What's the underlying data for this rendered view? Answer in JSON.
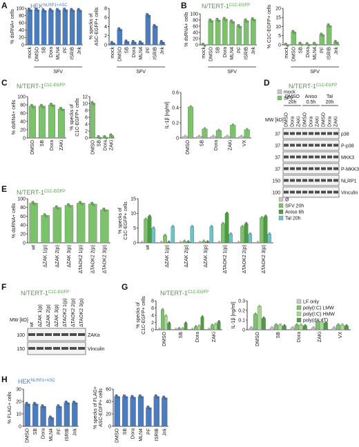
{
  "colors": {
    "blue": "#4a7cc0",
    "green": "#7cc26b",
    "gray": "#c8c8c8",
    "teal": "#6cc4c8",
    "dkgreen": "#4f9a45",
    "lgreen": "#a5d98f"
  },
  "panels": {
    "A": {
      "letter": "A",
      "title": "HEK",
      "title_sup": "NLRP1+ASC"
    },
    "B": {
      "letter": "B",
      "title": "N/TERT-1",
      "title_sup": "C1C-EGFP"
    },
    "C": {
      "letter": "C",
      "title": "N/TERT-1",
      "title_sup": "C1C-EGFP"
    },
    "D": {
      "letter": "D",
      "title": "N/TERT-1",
      "title_sup": "C1C-EGFP"
    },
    "E": {
      "letter": "E",
      "title": "N/TERT-1",
      "title_sup": "C1C-EGFP"
    },
    "F": {
      "letter": "F",
      "title": "N/TERT-1",
      "title_sup": "C1C-EGFP"
    },
    "G": {
      "letter": "G",
      "title": "N/TERT-1",
      "title_sup": "C1C-EGFP"
    },
    "H": {
      "letter": "H",
      "title": "HEK",
      "title_sup": "NLRP1+ASC"
    }
  },
  "chart_data": [
    {
      "id": "A1",
      "type": "bar",
      "color": "#4a7cc0",
      "ylabel": "% dsRNA+ cells",
      "ylim": [
        0,
        100
      ],
      "yticks": [
        0,
        20,
        40,
        60,
        80,
        100
      ],
      "categories": [
        "mock",
        "DMSO",
        "SB",
        "Dora",
        "MLN4",
        "PF",
        "ISRIB",
        "Jnk"
      ],
      "values": [
        96,
        96,
        94,
        95,
        95,
        96,
        95,
        95
      ],
      "group_label": "SFV"
    },
    {
      "id": "A2",
      "type": "bar",
      "color": "#4a7cc0",
      "ylabel": "% specks of ASC-EGFP+ cells",
      "ylim": [
        0,
        8
      ],
      "yticks": [
        0,
        2,
        4,
        6,
        8
      ],
      "categories": [
        "mock",
        "DMSO",
        "SB",
        "Dora",
        "MLN4",
        "PF",
        "ISRIB",
        "Jnk"
      ],
      "values": [
        0.4,
        3.4,
        0.7,
        0.6,
        0.5,
        6.5,
        4.1,
        0.6
      ],
      "group_label": "SFV"
    },
    {
      "id": "B1",
      "type": "bar",
      "color": "#7cc26b",
      "ylabel": "% dsRNA+ cells",
      "ylim": [
        0,
        100
      ],
      "yticks": [
        0,
        20,
        40,
        60,
        80,
        100
      ],
      "categories": [
        "mock",
        "DMSO",
        "SB",
        "Dora",
        "MLN4",
        "PF",
        "ISRIB",
        "Jnk"
      ],
      "values": [
        0,
        78,
        80,
        83,
        75,
        60,
        78,
        82
      ],
      "group_label": "SFV"
    },
    {
      "id": "B2",
      "type": "bar",
      "color": "#7cc26b",
      "ylabel": "% C1C-EGFP+ cells",
      "ylim": [
        0,
        20
      ],
      "yticks": [
        0,
        5,
        10,
        15,
        20
      ],
      "categories": [
        "mock",
        "DMSO",
        "SB",
        "Dora",
        "MLN4",
        "PF",
        "ISRIB",
        "Jnk"
      ],
      "values": [
        0,
        7,
        0.5,
        0.3,
        0.5,
        5.5,
        10.5,
        1.5
      ],
      "group_label": "SFV"
    },
    {
      "id": "C1",
      "type": "bar",
      "color": "#7cc26b",
      "ylabel": "% dsRNA+ cells",
      "ylim": [
        0,
        100
      ],
      "yticks": [
        0,
        20,
        40,
        60,
        80,
        100
      ],
      "categories": [
        "DMSO",
        "SB",
        "Dora",
        "ZAKi"
      ],
      "values": [
        77,
        77,
        80,
        70
      ]
    },
    {
      "id": "C2",
      "type": "bar",
      "color": "#7cc26b",
      "ylabel": "% specks of C1C-EGFP+ cells",
      "ylim": [
        0,
        12
      ],
      "yticks": [
        0,
        2,
        4,
        6,
        8,
        10,
        12
      ],
      "categories": [
        "DMSO",
        "SB",
        "Dora",
        "ZAKi"
      ],
      "values": [
        10.1,
        0.2,
        0.2,
        0.7
      ]
    },
    {
      "id": "C3",
      "type": "bar",
      "ylabel": "IL-1β [ng/ml]",
      "ylim": [
        0,
        0.6
      ],
      "yticks": [
        0,
        0.2,
        0.4,
        0.6
      ],
      "categories": [
        "DMSO",
        "SB",
        "Dora",
        "ZAKi",
        "VX"
      ],
      "series": [
        {
          "name": "mock",
          "color": "#c8c8c8",
          "values": [
            0.02,
            0.02,
            0.02,
            0.02,
            0.02
          ]
        },
        {
          "name": "SFV",
          "color": "#7cc26b",
          "values": [
            0.41,
            0.12,
            0.1,
            0.17,
            0.11
          ]
        }
      ]
    },
    {
      "id": "E1",
      "type": "bar",
      "color": "#7cc26b",
      "ylabel": "% dsRNA+ cells",
      "ylim": [
        0,
        100
      ],
      "yticks": [
        0,
        20,
        40,
        60,
        80,
        100
      ],
      "categories": [
        "wt",
        "ΔZAK 1(p)",
        "ΔZAK 2(p)",
        "ΔZAK 3(p)",
        "ΔTAOK2 1(p)",
        "ΔTAOK2 2(p)",
        "ΔTAOK2 3(p)"
      ],
      "values": [
        90,
        62,
        80,
        85,
        90,
        88,
        75
      ]
    },
    {
      "id": "E2",
      "type": "bar",
      "ylabel": "% specks of C1C-EGFP+ cells",
      "ylim": [
        0,
        15
      ],
      "yticks": [
        0,
        5,
        10,
        15
      ],
      "categories": [
        "wt",
        "ΔZAK 1(p)",
        "ΔZAK 2(p)",
        "ΔZAK 3(p)",
        "ΔTAOK2 1(p)",
        "ΔTAOK2 2(p)",
        "ΔTAOK2 3(p)"
      ],
      "series": [
        {
          "name": "Ø",
          "color": "#c8c8c8",
          "values": [
            0.1,
            0.1,
            0.1,
            0.1,
            0.1,
            0.1,
            0.1
          ]
        },
        {
          "name": "SFV 20h",
          "color": "#7cc26b",
          "values": [
            8,
            2.5,
            0.5,
            0.5,
            6.5,
            5.5,
            8.5
          ]
        },
        {
          "name": "Aniso 6h",
          "color": "#4f9a45",
          "values": [
            9,
            0.2,
            0.3,
            0.3,
            10,
            6.5,
            9
          ]
        },
        {
          "name": "Tal 20h",
          "color": "#6cc4c8",
          "values": [
            5,
            5.5,
            5.5,
            5.5,
            3,
            3,
            3
          ]
        }
      ]
    },
    {
      "id": "G1",
      "type": "bar",
      "ylabel": "% specks of C1C-EGFP+ cells",
      "ylim": [
        0,
        8
      ],
      "yticks": [
        0,
        2,
        4,
        6,
        8
      ],
      "categories": [
        "DMSO",
        "SB",
        "Dora",
        "ZAKi"
      ],
      "series": [
        {
          "name": "LF only",
          "color": "#c8c8c8",
          "values": [
            0.1,
            0.1,
            0.1,
            0.1
          ]
        },
        {
          "name": "poly(I:C) LMW",
          "color": "#7cc26b",
          "values": [
            5.5,
            0.3,
            0.8,
            1.2
          ]
        },
        {
          "name": "poly(I:C) HMW",
          "color": "#a5d98f",
          "values": [
            3.8,
            0.3,
            1.0,
            1.5
          ]
        },
        {
          "name": "poly(dA:dT)",
          "color": "#4f9a45",
          "values": [
            1.8,
            1.8,
            3.5,
            2.2
          ]
        }
      ]
    },
    {
      "id": "G2",
      "type": "bar",
      "ylabel": "IL-1β [ng/ml]",
      "ylim": [
        0,
        0.3
      ],
      "yticks": [
        0,
        0.1,
        0.2,
        0.3
      ],
      "categories": [
        "DMSO",
        "SB",
        "Dora",
        "ZAKi",
        "VX"
      ],
      "series": [
        {
          "name": "LF only",
          "color": "#c8c8c8",
          "values": [
            0.02,
            0.02,
            0.02,
            0.02,
            0.02
          ]
        },
        {
          "name": "poly(I:C) LMW",
          "color": "#7cc26b",
          "values": [
            0.16,
            0.05,
            0.05,
            0.08,
            0.05
          ]
        },
        {
          "name": "poly(I:C) HMW",
          "color": "#a5d98f",
          "values": [
            0.24,
            0.05,
            0.05,
            0.08,
            0.05
          ]
        },
        {
          "name": "poly(dA:dT)",
          "color": "#4f9a45",
          "values": [
            0.12,
            0.04,
            0.04,
            0.07,
            0.04
          ]
        }
      ]
    },
    {
      "id": "H1",
      "type": "bar",
      "color": "#4a7cc0",
      "ylabel": "% FLAG+ cells",
      "ylim": [
        0,
        30
      ],
      "yticks": [
        0,
        10,
        20,
        30
      ],
      "categories": [
        "DMSO",
        "SB",
        "Dora",
        "MLN4",
        "PF",
        "ISRIB",
        "Jnk"
      ],
      "values": [
        18,
        18,
        16,
        7,
        16,
        19,
        19
      ],
      "group_label": "HRV14 3C"
    },
    {
      "id": "H2",
      "type": "bar",
      "color": "#4a7cc0",
      "ylabel": "% specks of FLAG+ ASC-EGFP+ cells",
      "ylim": [
        0,
        60
      ],
      "yticks": [
        0,
        20,
        40,
        60
      ],
      "categories": [
        "DMSO",
        "SB",
        "Dora",
        "MLN4",
        "PF",
        "ISRIB",
        "Jnk"
      ],
      "values": [
        48,
        48,
        47,
        48,
        30,
        48,
        46
      ],
      "group_label": "HRV14 3C"
    }
  ],
  "blot_D": {
    "mw_label": "MW [kD]",
    "treatments": [
      {
        "name": "DMSO",
        "time": "20h"
      },
      {
        "name": "Aniso",
        "time": "0.5h"
      },
      {
        "name": "Tal",
        "time": "20h"
      }
    ],
    "lanes": [
      "DMSO",
      "Dora",
      "ZAKi",
      "DMSO",
      "Dora",
      "ZAKi",
      "DMSO",
      "Dora",
      "ZAKi"
    ],
    "rows": [
      {
        "mw": "37",
        "label": "p38"
      },
      {
        "mw": "37",
        "label": "P-p38"
      },
      {
        "mw": "37",
        "label": "MKK3"
      },
      {
        "mw": "37",
        "label": "P-MKK3"
      },
      {
        "mw": "150",
        "label": "NLRP1"
      },
      {
        "mw": "100",
        "label": "Vinculin"
      }
    ]
  },
  "blot_F": {
    "mw_label": "MW [kD]",
    "lanes": [
      "wt",
      "ΔZAK 1(p)",
      "ΔZAK 2(p)",
      "ΔZAK 3(p)",
      "ΔTAOK2 1(p)",
      "ΔTAOK2 2(p)",
      "ΔTAOK2 3(p)"
    ],
    "rows": [
      {
        "mw": "100",
        "label": "ZAKα"
      },
      {
        "mw": "150",
        "label": "Vinculin"
      }
    ]
  }
}
